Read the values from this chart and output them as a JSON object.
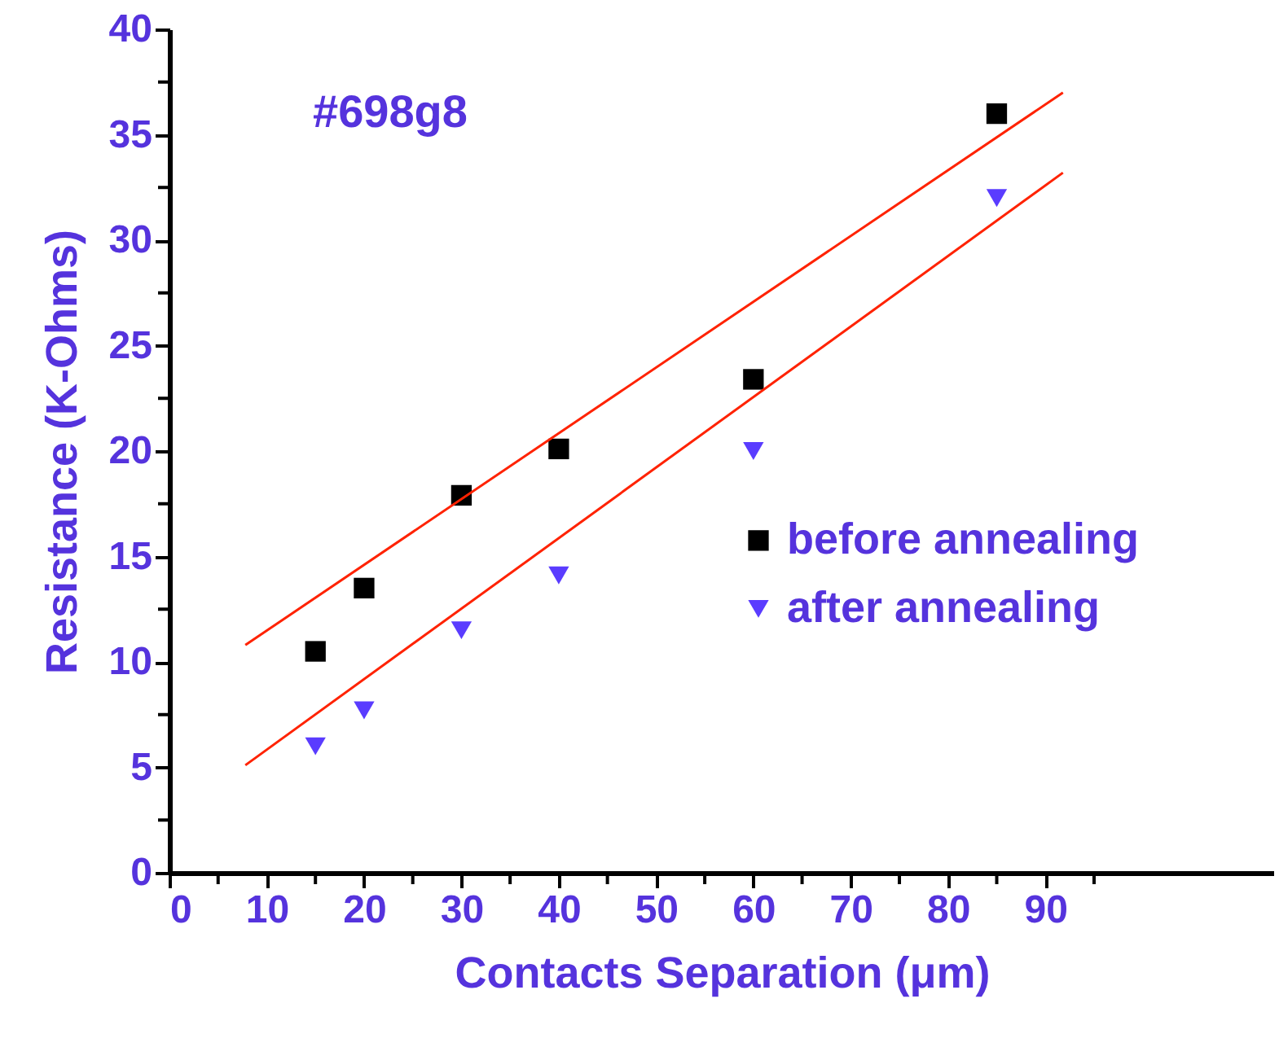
{
  "chart_data": {
    "type": "scatter",
    "xlabel": "Contacts Separation (μm)",
    "ylabel": "Resistance (K-Ohms)",
    "annotations": [
      "#698g8"
    ],
    "xlim": [
      0,
      113.5
    ],
    "ylim": [
      0,
      40
    ],
    "xticks": [
      0,
      {
        "value": 5,
        "label": null
      },
      10,
      {
        "value": 15,
        "label": null
      },
      20,
      {
        "value": 25,
        "label": null
      },
      30,
      {
        "value": 35,
        "label": null
      },
      40,
      {
        "value": 45,
        "label": null
      },
      50,
      {
        "value": 55,
        "label": null
      },
      60,
      {
        "value": 65,
        "label": null
      },
      70,
      {
        "value": 75,
        "label": null
      },
      80,
      {
        "value": 85,
        "label": null
      },
      90,
      {
        "value": 95,
        "label": null
      }
    ],
    "yticks": [
      0,
      {
        "value": 2.5,
        "label": null
      },
      5,
      {
        "value": 7.5,
        "label": null
      },
      10,
      {
        "value": 12.5,
        "label": null
      },
      15,
      {
        "value": 17.5,
        "label": null
      },
      20,
      {
        "value": 22.5,
        "label": null
      },
      25,
      {
        "value": 27.5,
        "label": null
      },
      30,
      {
        "value": 32.5,
        "label": null
      },
      35,
      {
        "value": 37.5,
        "label": null
      },
      40
    ],
    "grid": false,
    "legend": "right",
    "series": [
      {
        "name": "before annealing",
        "color": "#000000",
        "marker": "square",
        "x": [
          15,
          20,
          30,
          40,
          60,
          85
        ],
        "values": [
          10.5,
          13.5,
          17.9,
          20.1,
          23.4,
          36.0
        ]
      },
      {
        "name": "after annealing",
        "color": "#5a3cff",
        "marker": "triangle",
        "x": [
          15,
          20,
          30,
          40,
          60,
          85
        ],
        "values": [
          6.0,
          7.7,
          11.5,
          14.1,
          20.0,
          32.0
        ]
      },
      {
        "type": "line",
        "color": "#ff2200",
        "x": [
          7.8,
          91.8
        ],
        "values": [
          10.8,
          37.0
        ]
      },
      {
        "type": "line",
        "color": "#ff2200",
        "x": [
          7.8,
          91.8
        ],
        "values": [
          5.1,
          33.2
        ]
      }
    ]
  }
}
